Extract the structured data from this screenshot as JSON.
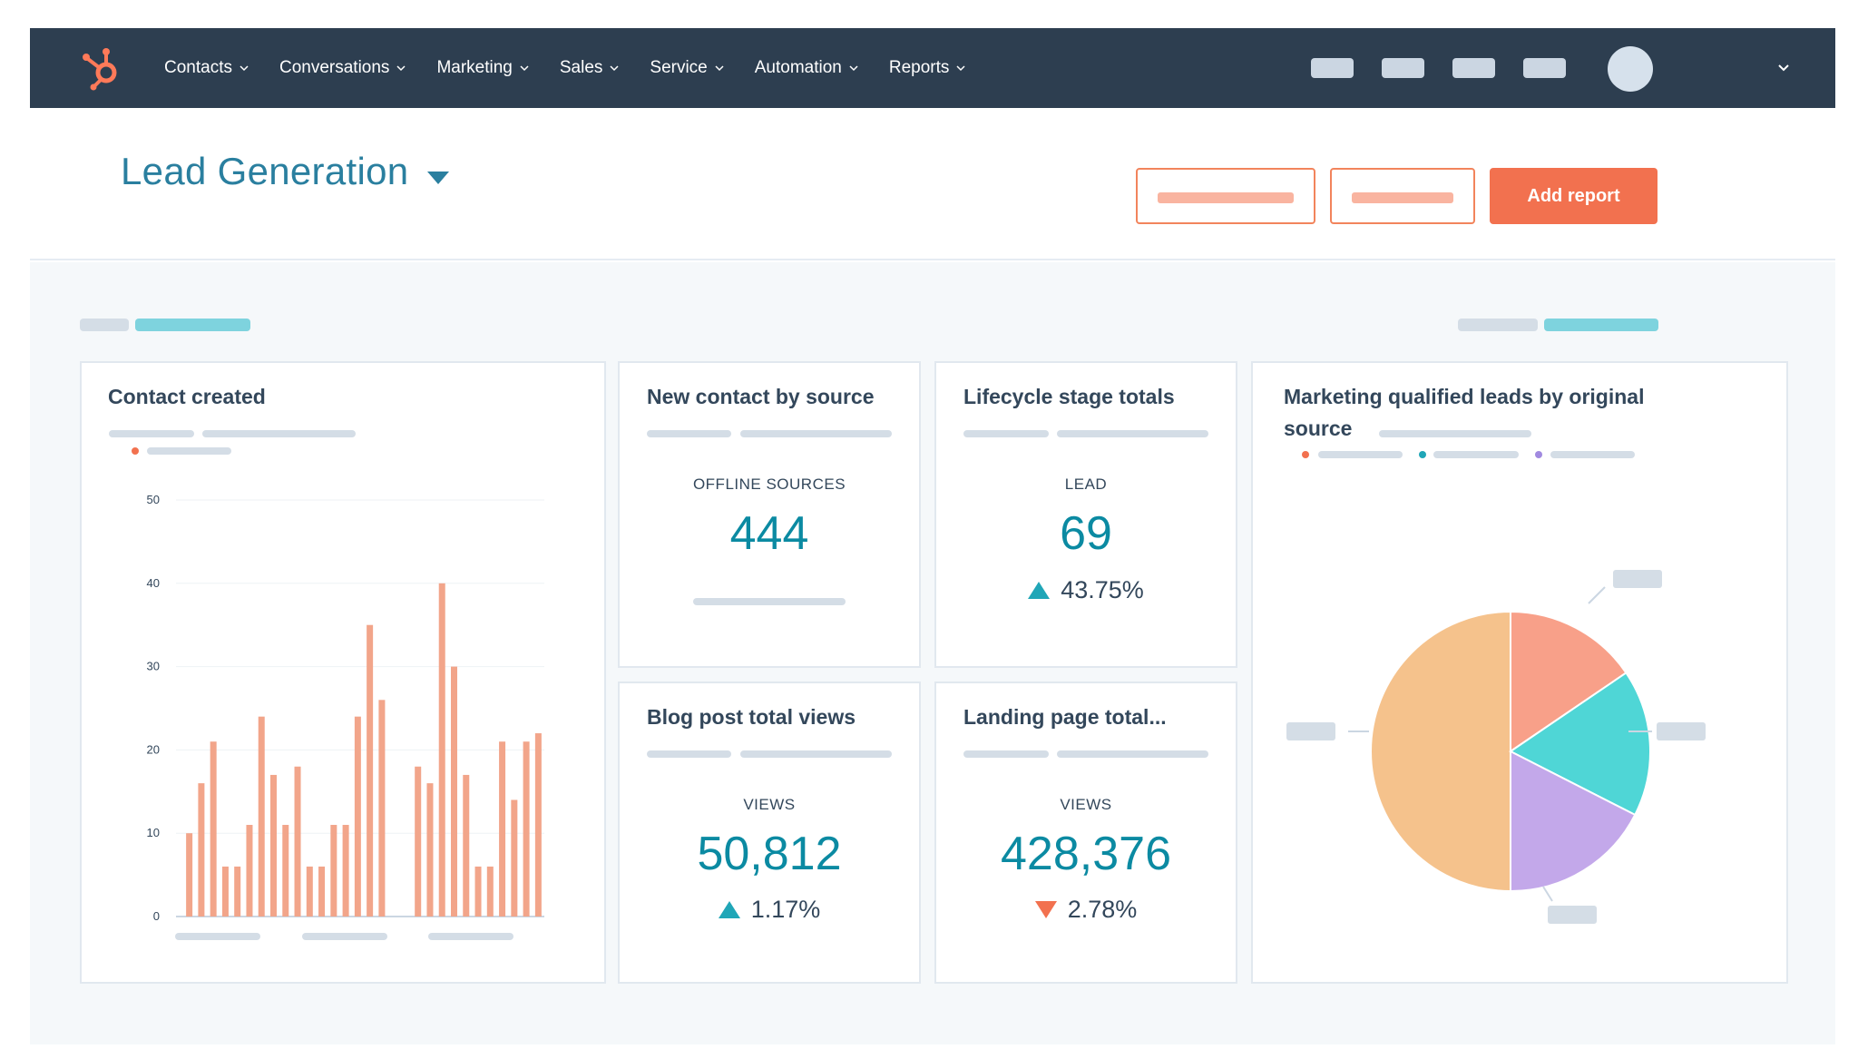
{
  "colors": {
    "nav_bg": "#2d3e50",
    "accent_orange": "#f2714f",
    "title_teal": "#2a7f9f",
    "kpi_teal": "#0b8aa2",
    "bar_color": "#f2a58a",
    "pie_orange": "#f5c28c",
    "pie_salmon": "#f8a089",
    "pie_teal": "#4fd6d6",
    "pie_purple": "#c3a8ea"
  },
  "nav": {
    "logo": "hubspot-sprocket-icon",
    "items": [
      {
        "label": "Contacts"
      },
      {
        "label": "Conversations"
      },
      {
        "label": "Marketing"
      },
      {
        "label": "Sales"
      },
      {
        "label": "Service"
      },
      {
        "label": "Automation"
      },
      {
        "label": "Reports"
      }
    ]
  },
  "header": {
    "title": "Lead Generation",
    "add_report_label": "Add report"
  },
  "cards": {
    "contact_created": {
      "title": "Contact created"
    },
    "new_contact_by_source": {
      "title": "New contact by source",
      "label": "OFFLINE SOURCES",
      "value": "444"
    },
    "lifecycle_stage_totals": {
      "title": "Lifecycle stage totals",
      "label": "LEAD",
      "value": "69",
      "delta": "43.75%",
      "trend": "up"
    },
    "blog_post_views": {
      "title": "Blog post total views",
      "label": "VIEWS",
      "value": "50,812",
      "delta": "1.17%",
      "trend": "up"
    },
    "landing_page_total": {
      "title": "Landing page total...",
      "label": "VIEWS",
      "value": "428,376",
      "delta": "2.78%",
      "trend": "down"
    },
    "mql_by_source": {
      "title_line1": "Marketing qualified leads by original",
      "title_line2": "source"
    }
  },
  "chart_data": [
    {
      "type": "bar",
      "title": "Contact created",
      "ylim": [
        0,
        50
      ],
      "yticks": [
        0,
        10,
        20,
        30,
        40,
        50
      ],
      "grid": true,
      "values": [
        10,
        16,
        21,
        6,
        6,
        11,
        24,
        17,
        11,
        18,
        6,
        6,
        11,
        11,
        24,
        35,
        26,
        0,
        0,
        18,
        16,
        40,
        30,
        17,
        6,
        6,
        21,
        14,
        21,
        22
      ]
    },
    {
      "type": "pie",
      "title": "Marketing qualified leads by original source",
      "slices": [
        {
          "value": 50,
          "color": "#f5c28c"
        },
        {
          "value": 15.5,
          "color": "#f8a089"
        },
        {
          "value": 17,
          "color": "#4fd6d6"
        },
        {
          "value": 17.5,
          "color": "#c3a8ea"
        }
      ]
    }
  ]
}
